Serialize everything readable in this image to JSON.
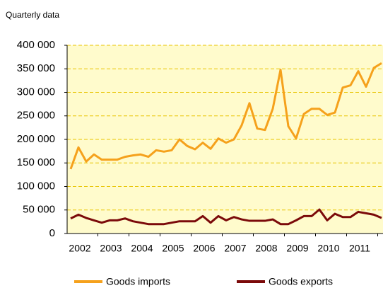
{
  "chart_data": {
    "type": "line",
    "title": "Quarterly data",
    "categories": [
      null,
      "2002",
      null,
      null,
      null,
      "2003",
      null,
      null,
      null,
      "2004",
      null,
      null,
      null,
      "2005",
      null,
      null,
      null,
      "2006",
      null,
      null,
      null,
      "2007",
      null,
      null,
      null,
      "2008",
      null,
      null,
      null,
      "2009",
      null,
      null,
      null,
      "2010",
      null,
      null,
      null,
      "2011",
      null,
      null,
      null
    ],
    "series": [
      {
        "name": "Goods imports",
        "color": "#f5a11c",
        "values": [
          137000,
          183000,
          153000,
          168000,
          157000,
          157000,
          157000,
          163000,
          166000,
          168000,
          163000,
          177000,
          174000,
          177000,
          200000,
          186000,
          179000,
          193000,
          180000,
          202000,
          193000,
          200000,
          230000,
          277000,
          223000,
          220000,
          265000,
          348000,
          228000,
          202000,
          254000,
          265000,
          265000,
          252000,
          257000,
          310000,
          315000,
          345000,
          312000,
          352000,
          362000
        ]
      },
      {
        "name": "Goods exports",
        "color": "#7b0a0a",
        "values": [
          32000,
          40000,
          33000,
          28000,
          23000,
          28000,
          28000,
          32000,
          26000,
          23000,
          20000,
          20000,
          20000,
          23000,
          26000,
          26000,
          26000,
          37000,
          23000,
          37000,
          28000,
          35000,
          30000,
          27000,
          27000,
          27000,
          30000,
          20000,
          20000,
          28000,
          37000,
          37000,
          51000,
          28000,
          42000,
          35000,
          35000,
          46000,
          43000,
          40000,
          33000
        ]
      }
    ],
    "ylim": [
      0,
      400000
    ],
    "yticks": [
      0,
      {
        "value": 50000,
        "label": "50 000"
      },
      {
        "value": 100000,
        "label": "100 000"
      },
      {
        "value": 150000,
        "label": "150 000"
      },
      {
        "value": 200000,
        "label": "200 000"
      },
      {
        "value": 250000,
        "label": "250 000"
      },
      {
        "value": 300000,
        "label": "300 000"
      },
      {
        "value": 350000,
        "label": "350 000"
      },
      {
        "value": 400000,
        "label": "400 000"
      }
    ],
    "grid": true,
    "legend": "bottom"
  }
}
